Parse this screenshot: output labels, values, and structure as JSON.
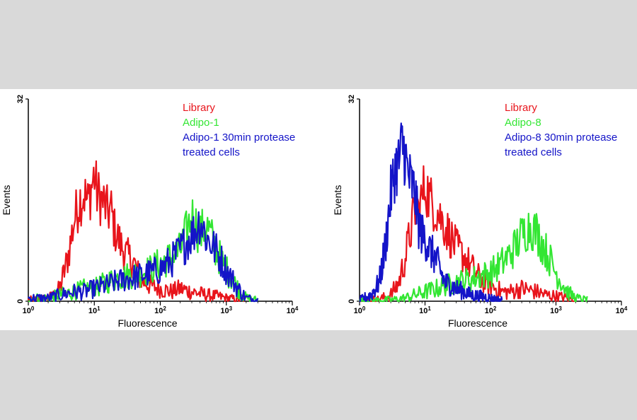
{
  "chart_data": [
    {
      "type": "line",
      "xlabel": "Fluorescence",
      "ylabel": "Events",
      "x_scale": "log",
      "xlim": [
        1,
        10000
      ],
      "ylim": [
        0,
        32
      ],
      "x_ticks": [
        {
          "value": 1,
          "base": "10",
          "exp": "0"
        },
        {
          "value": 10,
          "base": "10",
          "exp": "1"
        },
        {
          "value": 100,
          "base": "10",
          "exp": "2"
        },
        {
          "value": 1000,
          "base": "10",
          "exp": "3"
        },
        {
          "value": 10000,
          "base": "10",
          "exp": "4"
        }
      ],
      "y_ticks": [
        {
          "value": 0,
          "label": "0"
        },
        {
          "value": 32,
          "label": "32"
        }
      ],
      "grid": false,
      "legend_position": "top-right",
      "legend": [
        {
          "text": "Library",
          "color": "#e8141b"
        },
        {
          "text": "Adipo-1",
          "color": "#33e633"
        },
        {
          "text": "Adipo-1 30min protease",
          "color": "#1414c8"
        },
        {
          "text": "treated cells",
          "color": "#1414c8"
        }
      ],
      "series": [
        {
          "name": "Library",
          "color": "#e8141b",
          "x": [
            1,
            1.5,
            2,
            2.5,
            3,
            4,
            5,
            6,
            7,
            8,
            9,
            10,
            11,
            12,
            14,
            16,
            18,
            20,
            25,
            30,
            40,
            50,
            70,
            100,
            150,
            200,
            300,
            500,
            700,
            1000,
            1500,
            2000
          ],
          "y": [
            0.2,
            0.3,
            0.5,
            1.0,
            2.0,
            7.0,
            13.0,
            16.0,
            17.0,
            15.5,
            18.0,
            20.0,
            17.0,
            16.5,
            15.5,
            14.0,
            14.5,
            11.5,
            9.0,
            7.5,
            6.0,
            3.5,
            2.5,
            2.0,
            1.5,
            2.0,
            1.5,
            1.0,
            0.8,
            0.5,
            0.3,
            0.2
          ]
        },
        {
          "name": "Adipo-1",
          "color": "#33e633",
          "x": [
            1,
            2,
            3,
            5,
            7,
            10,
            15,
            20,
            30,
            50,
            70,
            100,
            150,
            200,
            250,
            300,
            350,
            400,
            450,
            500,
            600,
            700,
            1000,
            1500,
            2000,
            3000
          ],
          "y": [
            0.5,
            0.5,
            1.0,
            1.5,
            2.0,
            2.0,
            3.0,
            3.5,
            4.0,
            4.5,
            5.0,
            6.0,
            7.0,
            8.0,
            11.0,
            13.5,
            12.0,
            10.5,
            11.5,
            12.0,
            10.0,
            8.0,
            5.0,
            2.0,
            0.5,
            0.2
          ]
        },
        {
          "name": "Adipo-1 30min protease treated cells",
          "color": "#1414c8",
          "x": [
            1,
            2,
            3,
            5,
            7,
            10,
            15,
            20,
            30,
            50,
            70,
            100,
            150,
            200,
            250,
            300,
            350,
            400,
            450,
            500,
            600,
            700,
            1000,
            1500,
            2000,
            3000
          ],
          "y": [
            0.5,
            0.5,
            1.0,
            1.5,
            1.5,
            2.0,
            2.5,
            3.0,
            3.5,
            4.0,
            4.5,
            5.0,
            6.5,
            8.0,
            9.5,
            10.5,
            11.5,
            13.0,
            11.5,
            10.0,
            9.0,
            8.0,
            5.0,
            2.0,
            0.5,
            0.2
          ]
        }
      ]
    },
    {
      "type": "line",
      "xlabel": "Fluorescence",
      "ylabel": "Events",
      "x_scale": "log",
      "xlim": [
        1,
        10000
      ],
      "ylim": [
        0,
        32
      ],
      "x_ticks": [
        {
          "value": 1,
          "base": "10",
          "exp": "0"
        },
        {
          "value": 10,
          "base": "10",
          "exp": "1"
        },
        {
          "value": 100,
          "base": "10",
          "exp": "2"
        },
        {
          "value": 1000,
          "base": "10",
          "exp": "3"
        },
        {
          "value": 10000,
          "base": "10",
          "exp": "4"
        }
      ],
      "y_ticks": [
        {
          "value": 0,
          "label": "0"
        },
        {
          "value": 32,
          "label": "32"
        }
      ],
      "grid": false,
      "legend_position": "top-right",
      "legend": [
        {
          "text": "Library",
          "color": "#e8141b"
        },
        {
          "text": "Adipo-8",
          "color": "#33e633"
        },
        {
          "text": "Adipo-8 30min protease",
          "color": "#1414c8"
        },
        {
          "text": "treated cells",
          "color": "#1414c8"
        }
      ],
      "series": [
        {
          "name": "Library",
          "color": "#e8141b",
          "x": [
            1,
            2,
            3,
            4,
            5,
            6,
            7,
            8,
            10,
            12,
            15,
            20,
            25,
            30,
            40,
            50,
            70,
            100,
            150,
            200,
            300,
            500,
            700,
            1000,
            1500,
            2000
          ],
          "y": [
            0.2,
            0.3,
            1.0,
            3.0,
            7.0,
            11.0,
            14.5,
            14.0,
            18.5,
            16.0,
            14.5,
            12.0,
            10.0,
            8.5,
            7.0,
            5.5,
            3.5,
            2.5,
            1.5,
            1.5,
            2.0,
            1.5,
            1.0,
            0.8,
            0.5,
            0.2
          ]
        },
        {
          "name": "Adipo-8",
          "color": "#33e633",
          "x": [
            1,
            3,
            5,
            7,
            10,
            15,
            20,
            30,
            50,
            70,
            100,
            150,
            200,
            250,
            300,
            400,
            500,
            700,
            1000,
            1500,
            2000,
            3000
          ],
          "y": [
            0.0,
            0.2,
            0.5,
            1.0,
            1.5,
            2.0,
            2.5,
            3.0,
            3.5,
            4.0,
            4.5,
            6.0,
            7.5,
            9.0,
            10.5,
            12.0,
            11.0,
            8.0,
            4.5,
            1.5,
            0.5,
            0.2
          ]
        },
        {
          "name": "Adipo-8 30min protease treated cells",
          "color": "#1414c8",
          "x": [
            1,
            1.5,
            2,
            2.5,
            3,
            3.5,
            4,
            4.5,
            5,
            5.5,
            6,
            7,
            8,
            9,
            10,
            12,
            15,
            20,
            25,
            30,
            40,
            50,
            70,
            100,
            150
          ],
          "y": [
            0.2,
            1.0,
            3.0,
            9.0,
            17.0,
            21.0,
            22.0,
            25.0,
            23.0,
            20.0,
            19.0,
            17.0,
            12.0,
            10.5,
            10.0,
            8.0,
            6.5,
            3.0,
            2.5,
            2.0,
            1.5,
            1.0,
            0.8,
            0.5,
            0.2
          ]
        }
      ]
    }
  ]
}
